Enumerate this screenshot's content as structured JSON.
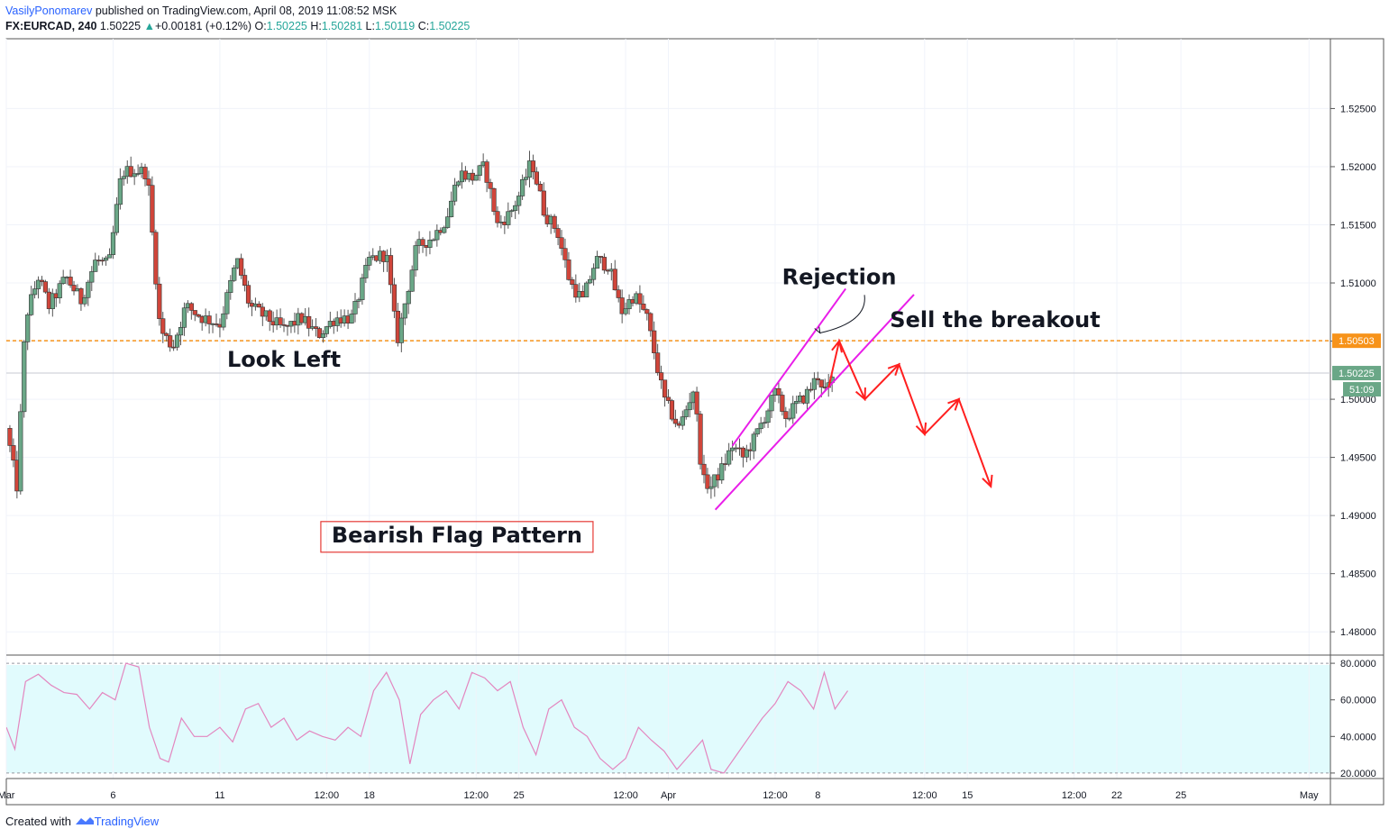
{
  "header": {
    "author": "VasilyPonomarev",
    "published_text": "published on TradingView.com, April 08, 2019 11:08:52 MSK",
    "symbol": "FX:EURCAD, 240",
    "last": "1.50225",
    "change_arrow": "▲",
    "change": "+0.00181 (+0.12%)",
    "o_label": "O:",
    "o_value": "1.50225",
    "h_label": "H:",
    "h_value": "1.50281",
    "l_label": "L:",
    "l_value": "1.50119",
    "c_label": "C:",
    "c_value": "1.50225"
  },
  "footer": {
    "created_with": "Created with",
    "brand": "TradingView"
  },
  "colors": {
    "up": "#6aa787",
    "down": "#d0453a",
    "wick": "#555555",
    "channel": "#e91ee9",
    "arrow": "#ff1f1f",
    "level": "#f7931a",
    "rsi_line": "#e386bf",
    "rsi_bg": "#e1fbfd",
    "price_tag": "#6aa787"
  },
  "chart_data": {
    "type": "candlestick",
    "symbol": "FX:EURCAD",
    "timeframe": "240",
    "price_axis": {
      "range": [
        1.478,
        1.531
      ],
      "ticks": [
        "1.52500",
        "1.52000",
        "1.51500",
        "1.51000",
        "1.50500",
        "1.50000",
        "1.49500",
        "1.49000",
        "1.48500",
        "1.48000"
      ]
    },
    "time_axis": {
      "range_days": [
        0,
        62
      ],
      "labels": [
        {
          "day": 0,
          "label": "Mar"
        },
        {
          "day": 5,
          "label": "6"
        },
        {
          "day": 10,
          "label": "11"
        },
        {
          "day": 15,
          "label": "12:00"
        },
        {
          "day": 17,
          "label": "18"
        },
        {
          "day": 22,
          "label": "12:00"
        },
        {
          "day": 24,
          "label": "25"
        },
        {
          "day": 29,
          "label": "12:00"
        },
        {
          "day": 31,
          "label": "Apr"
        },
        {
          "day": 36,
          "label": "12:00"
        },
        {
          "day": 38,
          "label": "8"
        },
        {
          "day": 43,
          "label": "12:00"
        },
        {
          "day": 45,
          "label": "15"
        },
        {
          "day": 50,
          "label": "12:00"
        },
        {
          "day": 52,
          "label": "22"
        },
        {
          "day": 55,
          "label": "25"
        },
        {
          "day": 61,
          "label": "May"
        }
      ]
    },
    "close_path": [
      [
        0,
        1.4975
      ],
      [
        0.5,
        1.4925
      ],
      [
        0.9,
        1.507
      ],
      [
        1.5,
        1.5105
      ],
      [
        2,
        1.508
      ],
      [
        2.8,
        1.5105
      ],
      [
        3.5,
        1.5085
      ],
      [
        4.2,
        1.512
      ],
      [
        4.8,
        1.5115
      ],
      [
        5.4,
        1.5195
      ],
      [
        6.0,
        1.5197
      ],
      [
        6.6,
        1.5195
      ],
      [
        7.2,
        1.506
      ],
      [
        7.8,
        1.5045
      ],
      [
        8.4,
        1.508
      ],
      [
        9.2,
        1.507
      ],
      [
        10.0,
        1.5065
      ],
      [
        10.8,
        1.512
      ],
      [
        11.4,
        1.508
      ],
      [
        12.2,
        1.507
      ],
      [
        13.0,
        1.506
      ],
      [
        13.8,
        1.507
      ],
      [
        14.6,
        1.5055
      ],
      [
        15.4,
        1.507
      ],
      [
        16.2,
        1.507
      ],
      [
        17.0,
        1.512
      ],
      [
        17.8,
        1.5125
      ],
      [
        18.3,
        1.505
      ],
      [
        19.2,
        1.513
      ],
      [
        20.0,
        1.514
      ],
      [
        20.6,
        1.5155
      ],
      [
        21.2,
        1.5195
      ],
      [
        21.8,
        1.519
      ],
      [
        22.4,
        1.52
      ],
      [
        23.0,
        1.515
      ],
      [
        23.6,
        1.516
      ],
      [
        24.0,
        1.5175
      ],
      [
        24.6,
        1.5205
      ],
      [
        25.2,
        1.516
      ],
      [
        25.8,
        1.5145
      ],
      [
        26.4,
        1.51
      ],
      [
        27.0,
        1.5085
      ],
      [
        27.6,
        1.512
      ],
      [
        28.2,
        1.5115
      ],
      [
        28.8,
        1.5075
      ],
      [
        29.4,
        1.509
      ],
      [
        30.0,
        1.507
      ],
      [
        30.8,
        1.5
      ],
      [
        31.5,
        1.4975
      ],
      [
        32.2,
        1.501
      ],
      [
        32.6,
        1.493
      ],
      [
        33.0,
        1.4925
      ],
      [
        33.5,
        1.494
      ],
      [
        34.0,
        1.496
      ],
      [
        34.5,
        1.495
      ],
      [
        35.0,
        1.4965
      ],
      [
        35.5,
        1.4985
      ],
      [
        36.0,
        1.5005
      ],
      [
        36.5,
        1.4985
      ],
      [
        37.0,
        1.4995
      ],
      [
        37.5,
        1.5005
      ],
      [
        38.0,
        1.502
      ],
      [
        38.4,
        1.5005
      ],
      [
        38.8,
        1.5022
      ]
    ],
    "flag_channel": {
      "upper": [
        [
          34.0,
          1.496
        ],
        [
          39.3,
          1.5095
        ]
      ],
      "lower": [
        [
          33.2,
          1.4905
        ],
        [
          42.5,
          1.509
        ]
      ]
    },
    "projection_path": [
      [
        38.5,
        1.501
      ],
      [
        39.0,
        1.505
      ],
      [
        40.2,
        1.5
      ],
      [
        41.8,
        1.503
      ],
      [
        43.0,
        1.497
      ],
      [
        44.6,
        1.5
      ],
      [
        46.1,
        1.4925
      ]
    ],
    "horizontal_level": {
      "value": 1.50503,
      "label": "1.50503",
      "style": "dashed"
    },
    "current_price": {
      "value": 1.50225,
      "label": "1.50225",
      "countdown": "51:09"
    },
    "annotations": [
      {
        "text": "Rejection",
        "day": 39.0,
        "price": 1.5099
      },
      {
        "text": "Sell the breakout",
        "day": 46.3,
        "price": 1.5062
      },
      {
        "text": "Look Left",
        "day": 13.0,
        "price": 1.5028
      },
      {
        "text": "Bearish Flag Pattern",
        "day": 21.1,
        "price": 1.4877
      }
    ],
    "rsi": {
      "range": [
        17,
        83
      ],
      "ticks": [
        "80.0000",
        "60.0000",
        "40.0000",
        "20.0000"
      ],
      "band": [
        20,
        80
      ],
      "path": [
        [
          0,
          45
        ],
        [
          0.4,
          33
        ],
        [
          0.9,
          70
        ],
        [
          1.5,
          74
        ],
        [
          2.1,
          68
        ],
        [
          2.7,
          64
        ],
        [
          3.3,
          63
        ],
        [
          3.9,
          55
        ],
        [
          4.5,
          64
        ],
        [
          5.1,
          60
        ],
        [
          5.6,
          80
        ],
        [
          6.2,
          78
        ],
        [
          6.7,
          45
        ],
        [
          7.2,
          28
        ],
        [
          7.6,
          26
        ],
        [
          8.2,
          50
        ],
        [
          8.8,
          40
        ],
        [
          9.4,
          40
        ],
        [
          10.0,
          45
        ],
        [
          10.6,
          37
        ],
        [
          11.2,
          55
        ],
        [
          11.8,
          58
        ],
        [
          12.4,
          45
        ],
        [
          13.0,
          50
        ],
        [
          13.6,
          38
        ],
        [
          14.2,
          43
        ],
        [
          14.8,
          40
        ],
        [
          15.4,
          38
        ],
        [
          16.0,
          45
        ],
        [
          16.6,
          40
        ],
        [
          17.2,
          65
        ],
        [
          17.8,
          75
        ],
        [
          18.4,
          60
        ],
        [
          18.9,
          25
        ],
        [
          19.4,
          52
        ],
        [
          20.0,
          60
        ],
        [
          20.6,
          65
        ],
        [
          21.2,
          55
        ],
        [
          21.8,
          75
        ],
        [
          22.4,
          72
        ],
        [
          23.0,
          65
        ],
        [
          23.6,
          70
        ],
        [
          24.2,
          45
        ],
        [
          24.8,
          30
        ],
        [
          25.4,
          55
        ],
        [
          26.0,
          60
        ],
        [
          26.6,
          45
        ],
        [
          27.2,
          40
        ],
        [
          27.8,
          28
        ],
        [
          28.4,
          22
        ],
        [
          29.0,
          28
        ],
        [
          29.6,
          45
        ],
        [
          30.2,
          38
        ],
        [
          30.8,
          32
        ],
        [
          31.4,
          22
        ],
        [
          32.0,
          30
        ],
        [
          32.6,
          38
        ],
        [
          33.0,
          22
        ],
        [
          33.6,
          20
        ],
        [
          34.2,
          30
        ],
        [
          34.8,
          40
        ],
        [
          35.4,
          50
        ],
        [
          36.0,
          58
        ],
        [
          36.6,
          70
        ],
        [
          37.2,
          65
        ],
        [
          37.8,
          55
        ],
        [
          38.3,
          75
        ],
        [
          38.8,
          55
        ],
        [
          39.4,
          65
        ]
      ]
    }
  }
}
